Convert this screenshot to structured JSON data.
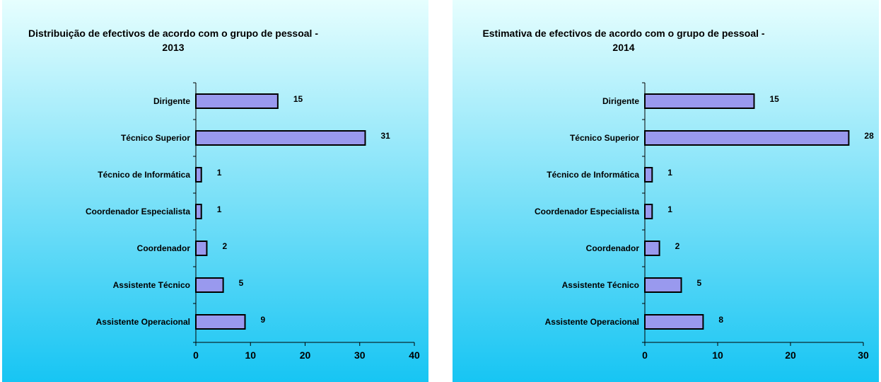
{
  "chart_data": [
    {
      "type": "bar",
      "orientation": "horizontal",
      "title_lines": [
        "Distribuição de efectivos de acordo com o grupo de pessoal -",
        "2013"
      ],
      "categories": [
        "Dirigente",
        "Técnico Superior",
        "Técnico de Informática",
        "Coordenador Especialista",
        "Coordenador",
        "Assistente Técnico",
        "Assistente Operacional"
      ],
      "values": [
        15,
        31,
        1,
        1,
        2,
        5,
        9
      ],
      "xlim": [
        0,
        40
      ],
      "xticks": [
        0,
        10,
        20,
        30,
        40
      ],
      "grid": false,
      "legend": "none",
      "colors": {
        "bar_fill": "#9999ee",
        "bar_stroke": "#000000",
        "bg_top": "#e6fefe",
        "bg_bottom": "#17c5f3"
      }
    },
    {
      "type": "bar",
      "orientation": "horizontal",
      "title_lines": [
        "Estimativa  de efectivos de acordo com o grupo de pessoal -",
        "2014"
      ],
      "categories": [
        "Dirigente",
        "Técnico Superior",
        "Técnico de Informática",
        "Coordenador Especialista",
        "Coordenador",
        "Assistente Técnico",
        "Assistente Operacional"
      ],
      "values": [
        15,
        28,
        1,
        1,
        2,
        5,
        8
      ],
      "xlim": [
        0,
        30
      ],
      "xticks": [
        0,
        10,
        20,
        30
      ],
      "grid": false,
      "legend": "none",
      "colors": {
        "bar_fill": "#9999ee",
        "bar_stroke": "#000000",
        "bg_top": "#e6fefe",
        "bg_bottom": "#17c5f3"
      }
    }
  ]
}
